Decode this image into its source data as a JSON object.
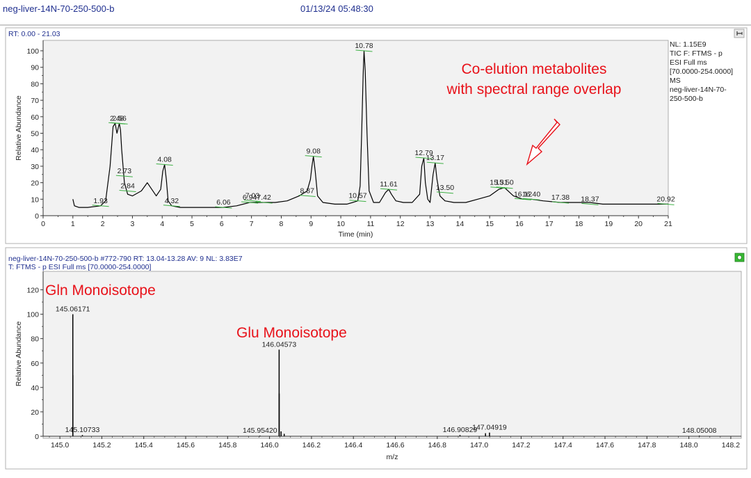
{
  "header": {
    "file": "neg-liver-14N-70-250-500-b",
    "datetime": "01/13/24 05:48:30"
  },
  "top_panel": {
    "rt_label": "RT: 0.00 - 21.03",
    "side_info": [
      "NL: 1.15E9",
      "TIC F: FTMS - p",
      "ESI Full ms",
      "[70.0000-254.0000]",
      "MS",
      "neg-liver-14N-70-",
      "250-500-b"
    ],
    "pin_icon": "pin-icon"
  },
  "bottom_panel": {
    "scan_line": "neg-liver-14N-70-250-500-b #772-790   RT: 13.04-13.28   AV: 9   NL: 3.83E7",
    "filter_line": "T: FTMS - p ESI Full ms [70.0000-254.0000]",
    "status_icon": "green-status-icon"
  },
  "annotations": {
    "coelution_line1": "Co-elution metabolites",
    "coelution_line2": "with spectral range overlap",
    "gln": "Gln Monoisotope",
    "glu": "Glu Monoisotope"
  },
  "colors": {
    "header_text": "#1f2f8f",
    "annotation": "#e8121a",
    "plot_bg": "#f2f2f2",
    "trace": "#000000",
    "peak_marker": "#3cb043"
  },
  "chart_data": [
    {
      "type": "line",
      "title": "",
      "xlabel": "Time (min)",
      "ylabel": "Relative Abundance",
      "xlim": [
        0,
        21
      ],
      "ylim": [
        0,
        100
      ],
      "x_ticks": [
        0,
        1,
        2,
        3,
        4,
        5,
        6,
        7,
        8,
        9,
        10,
        11,
        12,
        13,
        14,
        15,
        16,
        17,
        18,
        19,
        20,
        21
      ],
      "y_ticks": [
        0,
        10,
        20,
        30,
        40,
        50,
        60,
        70,
        80,
        90,
        100
      ],
      "series": [
        {
          "x": [
            1.0,
            1.05,
            1.2,
            1.5,
            1.93,
            2.1,
            2.25,
            2.35,
            2.42,
            2.48,
            2.52,
            2.56,
            2.6,
            2.64,
            2.73,
            2.84,
            3.0,
            3.3,
            3.5,
            3.8,
            3.95,
            4.02,
            4.08,
            4.14,
            4.2,
            4.32,
            4.6,
            5.0,
            5.5,
            6.06,
            6.5,
            6.94,
            7.03,
            7.42,
            7.8,
            8.2,
            8.6,
            8.87,
            8.98,
            9.03,
            9.08,
            9.14,
            9.22,
            9.4,
            9.8,
            10.2,
            10.4,
            10.57,
            10.65,
            10.7,
            10.75,
            10.78,
            10.82,
            10.88,
            10.95,
            11.1,
            11.3,
            11.5,
            11.61,
            11.7,
            11.85,
            12.1,
            12.4,
            12.65,
            12.72,
            12.79,
            12.84,
            12.92,
            13.0,
            13.1,
            13.17,
            13.23,
            13.33,
            13.5,
            13.8,
            14.2,
            14.6,
            15.0,
            15.31,
            15.5,
            15.8,
            16.12,
            16.4,
            16.8,
            17.38,
            17.8,
            18.37,
            18.8,
            19.5,
            20.2,
            20.92,
            21.0
          ],
          "y": [
            10,
            6,
            5,
            5,
            6,
            9,
            30,
            54,
            56,
            50,
            53,
            56,
            52,
            40,
            20,
            13,
            12,
            15,
            20,
            12,
            16,
            27,
            31,
            22,
            9,
            6,
            5,
            5,
            5,
            5,
            6,
            8,
            8,
            8,
            8,
            9,
            12,
            15,
            22,
            30,
            36,
            27,
            12,
            8,
            7,
            7,
            8,
            9,
            18,
            50,
            85,
            100,
            88,
            50,
            15,
            8,
            8,
            14,
            16,
            13,
            9,
            8,
            8,
            13,
            30,
            35,
            20,
            10,
            8,
            25,
            32,
            22,
            12,
            9,
            8,
            8,
            10,
            12,
            16,
            17,
            12,
            10,
            10,
            9,
            8,
            8,
            8,
            7,
            7,
            7,
            7,
            7
          ]
        }
      ],
      "peak_labels": [
        "1.93",
        "2.48",
        "2.56",
        "2.73",
        "2.84",
        "4.08",
        "4.32",
        "6.06",
        "6.94",
        "7.03",
        "7.42",
        "8.87",
        "9.08",
        "10.57",
        "10.78",
        "11.61",
        "12.79",
        "13.17",
        "13.50",
        "15.31",
        "15.50",
        "16.12",
        "16.40",
        "17.38",
        "18.37",
        "20.92"
      ],
      "peak_label_y": [
        6,
        56,
        56,
        24,
        15,
        31,
        6,
        5,
        8,
        9,
        8,
        12,
        36,
        9,
        100,
        16,
        35,
        32,
        14,
        17,
        17,
        10,
        10,
        8,
        7,
        7
      ]
    },
    {
      "type": "bar",
      "title": "",
      "xlabel": "m/z",
      "ylabel": "Relative Abundance",
      "xlim": [
        144.92,
        148.25
      ],
      "ylim": [
        0,
        130
      ],
      "x_ticks": [
        "145.0",
        "145.2",
        "145.4",
        "145.6",
        "145.8",
        "146.0",
        "146.2",
        "146.4",
        "146.6",
        "146.8",
        "147.0",
        "147.2",
        "147.4",
        "147.6",
        "147.8",
        "148.0",
        "148.2"
      ],
      "y_ticks": [
        "0",
        "20",
        "40",
        "60",
        "80",
        "100",
        "120"
      ],
      "sticks_x": [
        145.06171,
        145.062,
        145.10733,
        145.9542,
        146.04573,
        146.046,
        146.055,
        146.07,
        146.90829,
        147.03,
        147.04919,
        148.05008
      ],
      "sticks_y": [
        100,
        50,
        1,
        0.5,
        71,
        35,
        4,
        2,
        1,
        2.5,
        3,
        0.5
      ],
      "label_x": [
        145.06171,
        145.10733,
        145.9542,
        146.04573,
        146.90829,
        147.04919,
        148.05008
      ],
      "label_y": [
        100,
        1,
        0.5,
        71,
        1,
        3,
        0.5
      ],
      "labels": [
        "145.06171",
        "145.10733",
        "145.95420",
        "146.04573",
        "146.90829",
        "147.04919",
        "148.05008"
      ]
    }
  ]
}
